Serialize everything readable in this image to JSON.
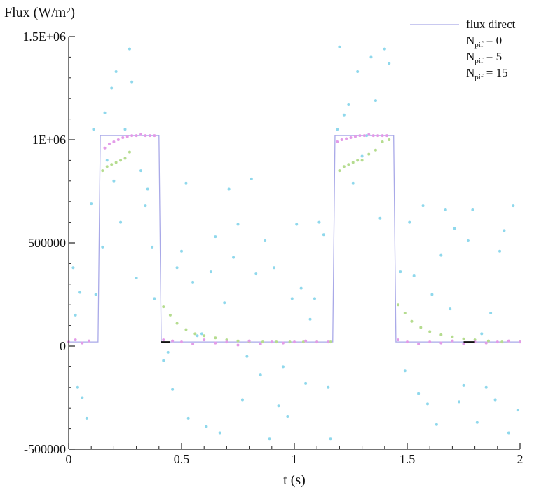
{
  "chart_data": {
    "type": "line",
    "title": "",
    "ylabel": "Flux (W/m²)",
    "xlabel": "t (s)",
    "xlim": [
      0,
      2
    ],
    "ylim": [
      -500000,
      1500000
    ],
    "x_ticks": [
      0,
      0.5,
      1,
      1.5,
      2
    ],
    "x_tick_labels": [
      "0",
      "0.5",
      "1",
      "1.5",
      "2"
    ],
    "y_ticks": [
      -500000,
      0,
      500000,
      1000000,
      1500000
    ],
    "y_tick_labels": [
      "-500000",
      "0",
      "500000",
      "1E+06",
      "1.5E+06"
    ],
    "legend_position": "top-right",
    "legend": [
      {
        "main": "flux direct",
        "sub": "",
        "suffix": ""
      },
      {
        "main": "N",
        "sub": "pif",
        "suffix": " = 0"
      },
      {
        "main": "N",
        "sub": "pif",
        "suffix": " = 5"
      },
      {
        "main": "N",
        "sub": "pif",
        "suffix": " = 15"
      }
    ],
    "series": [
      {
        "name": "flux direct",
        "style": "line",
        "color": "#a9a9e8",
        "x": [
          0,
          0.13,
          0.14,
          0.4,
          0.41,
          1.17,
          1.18,
          1.44,
          1.45,
          2.0
        ],
        "y": [
          20000,
          20000,
          1020000,
          1020000,
          20000,
          20000,
          1020000,
          1020000,
          20000,
          20000
        ]
      },
      {
        "name": "N = 0",
        "style": "points",
        "color": "#8fd8ec",
        "x": [
          0.02,
          0.03,
          0.04,
          0.05,
          0.06,
          0.08,
          0.1,
          0.11,
          0.12,
          0.15,
          0.16,
          0.17,
          0.19,
          0.2,
          0.21,
          0.23,
          0.25,
          0.27,
          0.28,
          0.3,
          0.32,
          0.34,
          0.35,
          0.37,
          0.38,
          0.42,
          0.44,
          0.46,
          0.48,
          0.5,
          0.52,
          0.53,
          0.55,
          0.57,
          0.59,
          0.61,
          0.63,
          0.65,
          0.67,
          0.69,
          0.71,
          0.73,
          0.75,
          0.77,
          0.79,
          0.81,
          0.83,
          0.85,
          0.87,
          0.89,
          0.91,
          0.93,
          0.95,
          0.97,
          0.99,
          1.01,
          1.03,
          1.05,
          1.07,
          1.09,
          1.11,
          1.13,
          1.15,
          1.16,
          1.19,
          1.2,
          1.22,
          1.24,
          1.26,
          1.28,
          1.3,
          1.32,
          1.34,
          1.36,
          1.38,
          1.4,
          1.42,
          1.47,
          1.49,
          1.51,
          1.53,
          1.55,
          1.57,
          1.59,
          1.61,
          1.63,
          1.65,
          1.67,
          1.69,
          1.71,
          1.73,
          1.75,
          1.77,
          1.79,
          1.81,
          1.83,
          1.85,
          1.87,
          1.89,
          1.91,
          1.93,
          1.95,
          1.97,
          1.99
        ],
        "y": [
          380000,
          150000,
          -200000,
          260000,
          -250000,
          -350000,
          690000,
          1050000,
          250000,
          480000,
          1130000,
          900000,
          1250000,
          800000,
          1330000,
          600000,
          1050000,
          1440000,
          1280000,
          330000,
          850000,
          680000,
          760000,
          480000,
          230000,
          -70000,
          -30000,
          -210000,
          380000,
          460000,
          790000,
          -350000,
          310000,
          50000,
          60000,
          -390000,
          360000,
          530000,
          -420000,
          210000,
          760000,
          430000,
          590000,
          -260000,
          -50000,
          810000,
          350000,
          -140000,
          510000,
          -450000,
          380000,
          -290000,
          -100000,
          -340000,
          230000,
          590000,
          280000,
          -180000,
          130000,
          230000,
          600000,
          540000,
          -200000,
          -450000,
          1050000,
          1450000,
          1120000,
          1170000,
          790000,
          1330000,
          920000,
          1020000,
          1400000,
          1190000,
          620000,
          1440000,
          1370000,
          360000,
          -120000,
          600000,
          340000,
          -230000,
          680000,
          -280000,
          250000,
          -380000,
          440000,
          660000,
          180000,
          570000,
          -270000,
          -190000,
          510000,
          660000,
          -370000,
          60000,
          -200000,
          160000,
          -260000,
          460000,
          560000,
          -420000,
          680000,
          -310000
        ]
      },
      {
        "name": "N = 5",
        "style": "points",
        "color": "#b5dc8f",
        "x": [
          0.42,
          0.45,
          0.48,
          0.52,
          0.56,
          0.6,
          0.65,
          0.7,
          0.75,
          0.8,
          0.86,
          0.92,
          0.98,
          1.04,
          1.1,
          1.16,
          1.2,
          1.22,
          1.24,
          1.26,
          1.28,
          1.3,
          1.33,
          1.36,
          1.39,
          1.42,
          1.46,
          1.49,
          1.52,
          1.56,
          1.6,
          1.65,
          1.7,
          1.75,
          1.8,
          1.86,
          1.92,
          2.0,
          0.15,
          0.17,
          0.19,
          0.21,
          0.23,
          0.25,
          0.27
        ],
        "y": [
          190000,
          150000,
          110000,
          80000,
          60000,
          50000,
          40000,
          30000,
          25000,
          20000,
          20000,
          20000,
          20000,
          20000,
          20000,
          20000,
          850000,
          870000,
          880000,
          890000,
          900000,
          900000,
          930000,
          950000,
          990000,
          1000000,
          200000,
          160000,
          120000,
          90000,
          70000,
          55000,
          45000,
          35000,
          30000,
          25000,
          20000,
          20000,
          850000,
          870000,
          880000,
          890000,
          900000,
          910000,
          940000
        ]
      },
      {
        "name": "N = 15",
        "style": "points",
        "color": "#e39be8",
        "x": [
          0.0,
          0.03,
          0.06,
          0.09,
          0.16,
          0.18,
          0.2,
          0.22,
          0.24,
          0.26,
          0.28,
          0.3,
          0.32,
          0.34,
          0.36,
          0.38,
          0.42,
          0.46,
          0.5,
          0.55,
          0.6,
          0.65,
          0.7,
          0.75,
          0.8,
          0.85,
          0.9,
          0.95,
          1.0,
          1.05,
          1.1,
          1.15,
          1.19,
          1.21,
          1.23,
          1.25,
          1.27,
          1.29,
          1.31,
          1.33,
          1.35,
          1.37,
          1.39,
          1.41,
          1.46,
          1.5,
          1.55,
          1.6,
          1.65,
          1.7,
          1.75,
          1.8,
          1.85,
          1.9,
          1.95,
          2.0
        ],
        "y": [
          20000,
          30000,
          15000,
          25000,
          960000,
          980000,
          990000,
          1000000,
          1010000,
          1015000,
          1020000,
          1020000,
          1025000,
          1020000,
          1020000,
          1020000,
          30000,
          25000,
          20000,
          10000,
          30000,
          15000,
          20000,
          5000,
          25000,
          10000,
          20000,
          15000,
          20000,
          25000,
          20000,
          20000,
          990000,
          1000000,
          1005000,
          1010000,
          1015000,
          1020000,
          1020000,
          1025000,
          1020000,
          1020000,
          1020000,
          1020000,
          30000,
          20000,
          10000,
          20000,
          15000,
          25000,
          10000,
          20000,
          15000,
          20000,
          25000,
          20000
        ]
      }
    ],
    "markers": {
      "black_short_segments": [
        {
          "x0": 0.41,
          "x1": 0.45,
          "y": 20000
        },
        {
          "x0": 1.75,
          "x1": 1.8,
          "y": 20000
        }
      ]
    }
  }
}
